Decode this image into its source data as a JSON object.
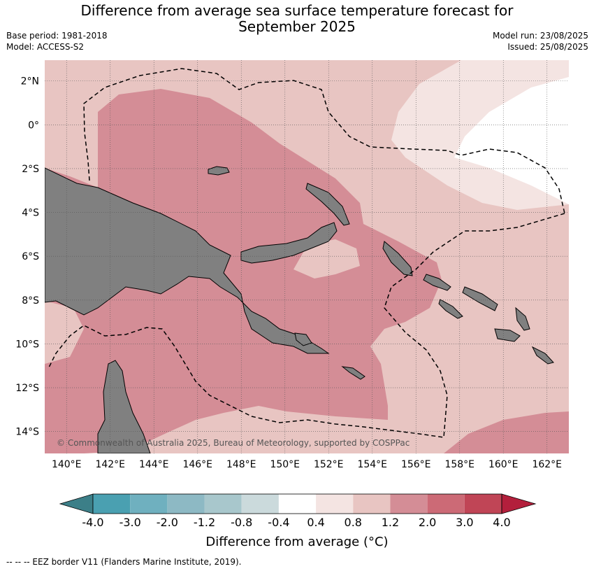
{
  "title_line1": "Difference from average sea surface temperature forecast for",
  "title_line2": "September 2025",
  "base_period": "Base period: 1981-2018",
  "model": "Model: ACCESS-S2",
  "model_run": "Model run: 23/08/2025",
  "issued": "Issued: 25/08/2025",
  "copyright": "© Commonwealth of Australia 2025, Bureau of Meteorology, supported by COSPPac",
  "lat_labels": [
    "2°N",
    "0°",
    "2°S",
    "4°S",
    "6°S",
    "8°S",
    "10°S",
    "12°S",
    "14°S"
  ],
  "lon_labels": [
    "140°E",
    "142°E",
    "144°E",
    "146°E",
    "148°E",
    "150°E",
    "152°E",
    "154°E",
    "156°E",
    "158°E",
    "160°E",
    "162°E"
  ],
  "colorbar": {
    "title": "Difference from average (°C)",
    "tick_labels": [
      "-4.0",
      "-3.0",
      "-2.0",
      "-1.2",
      "-0.8",
      "-0.4",
      "0.4",
      "0.8",
      "1.2",
      "2.0",
      "3.0",
      "4.0"
    ],
    "under_color": "#3c7f88",
    "over_color": "#b31f3c",
    "colors": [
      "#4aa0b1",
      "#6fb0bf",
      "#8db9c4",
      "#a8c7cc",
      "#cbdadc",
      "#ffffff",
      "#f4e4e2",
      "#e8c5c2",
      "#d48d96",
      "#cc6a76",
      "#c04556"
    ]
  },
  "map_colors": {
    "land": "#808080",
    "band_0_4_0_8": "#f4e4e2",
    "band_0_8_1_2": "#e8c5c2",
    "band_1_2_2_0": "#d48d96",
    "band_neutral": "#ffffff"
  },
  "footnote": "--  --  -- EEZ border V11 (Flanders Marine Institute, 2019)."
}
